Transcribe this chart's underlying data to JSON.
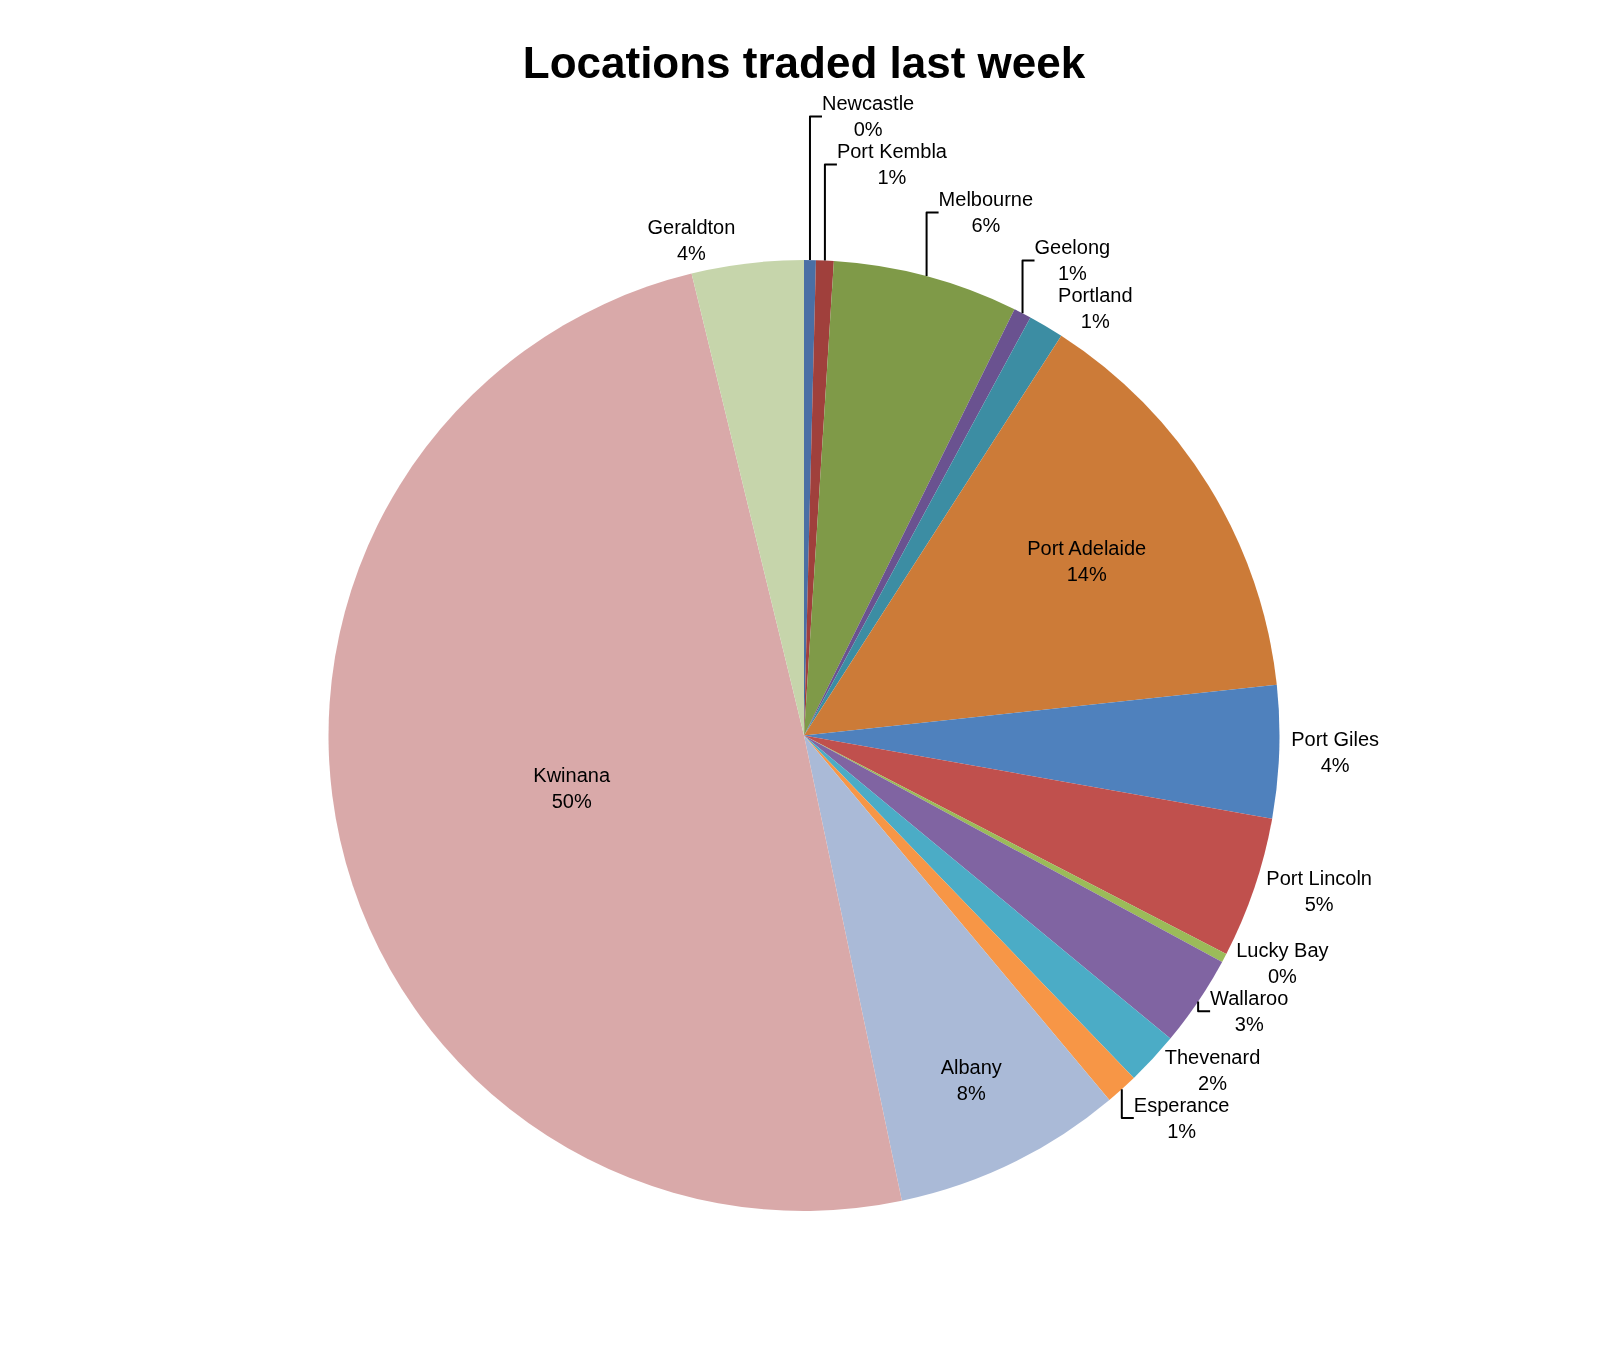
{
  "chart_data": {
    "type": "pie",
    "title": "Locations traded last week",
    "categories": [
      "Newcastle",
      "Port Kembla",
      "Melbourne",
      "Geelong",
      "Portland",
      "Port Adelaide",
      "Port Giles",
      "Port Lincoln",
      "Lucky Bay",
      "Wallaroo",
      "Thevenard",
      "Esperance",
      "Albany",
      "Kwinana",
      "Geraldton"
    ],
    "values": [
      0.4,
      0.6,
      6.3,
      0.6,
      1.2,
      14.2,
      4.5,
      4.8,
      0.3,
      3.1,
      1.8,
      1.1,
      7.8,
      49.5,
      3.8
    ],
    "value_labels": [
      "0%",
      "1%",
      "6%",
      "1%",
      "1%",
      "14%",
      "4%",
      "5%",
      "0%",
      "3%",
      "2%",
      "1%",
      "8%",
      "50%",
      "4%"
    ],
    "colors": [
      "#4a6fa5",
      "#a0403c",
      "#7f9a48",
      "#6a5290",
      "#3c8da3",
      "#cc7b38",
      "#4f81bd",
      "#c0504d",
      "#9bbb59",
      "#8064a2",
      "#4bacc6",
      "#f79646",
      "#aabad7",
      "#d9a9a9",
      "#c6d5ab"
    ],
    "legend": false
  }
}
